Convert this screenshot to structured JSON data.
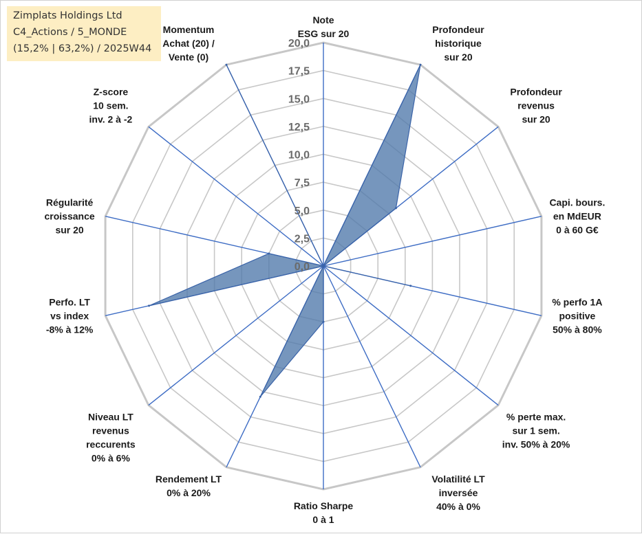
{
  "title_box": {
    "line1": "Zimplats Holdings Ltd",
    "line2": "C4_Actions / 5_MONDE",
    "line3": "(15,2% | 63,2%) / 2025W44"
  },
  "chart_data": {
    "type": "radar",
    "title": "Zimplats Holdings Ltd",
    "rmin": 0,
    "rmax": 20,
    "ticks": [
      "0,0",
      "2,5",
      "5,0",
      "7,5",
      "10,0",
      "12,5",
      "15,0",
      "17,5",
      "20,0"
    ],
    "categories": [
      [
        "Note",
        "ESG sur 20"
      ],
      [
        "Profondeur",
        "historique",
        "sur 20"
      ],
      [
        "Profondeur",
        "revenus",
        "sur 20"
      ],
      [
        "Capi. bours.",
        "en MdEUR",
        "0 à 60 G€"
      ],
      [
        "% perfo 1A",
        "positive",
        "50% à 80%"
      ],
      [
        "% perte max.",
        "sur 1 sem.",
        "inv. 50% à 20%"
      ],
      [
        "Volatilité LT",
        "inversée",
        "40% à 0%"
      ],
      [
        "Ratio Sharpe",
        "0 à 1"
      ],
      [
        "Rendement LT",
        "0% à 20%"
      ],
      [
        "Niveau LT",
        "revenus",
        "reccurents",
        "0% à 6%"
      ],
      [
        "Perfo. LT",
        "vs index",
        "-8% à 12%"
      ],
      [
        "Régularité",
        "croissance",
        "sur 20"
      ],
      [
        "Z-score",
        "10 sem.",
        "inv. 2 à -2"
      ],
      [
        "Momentum",
        "Achat (20) /",
        "Vente (0)"
      ]
    ],
    "series": [
      {
        "name": "Zimplats Holdings Ltd",
        "values": [
          0,
          20,
          8.3,
          0,
          8.0,
          0,
          0,
          5.0,
          13.0,
          0,
          16.0,
          5.0,
          0,
          20
        ],
        "color": "#4f79ab"
      }
    ],
    "grid_color": "#c7c7c7",
    "axis_color": "#3d6cc4"
  }
}
